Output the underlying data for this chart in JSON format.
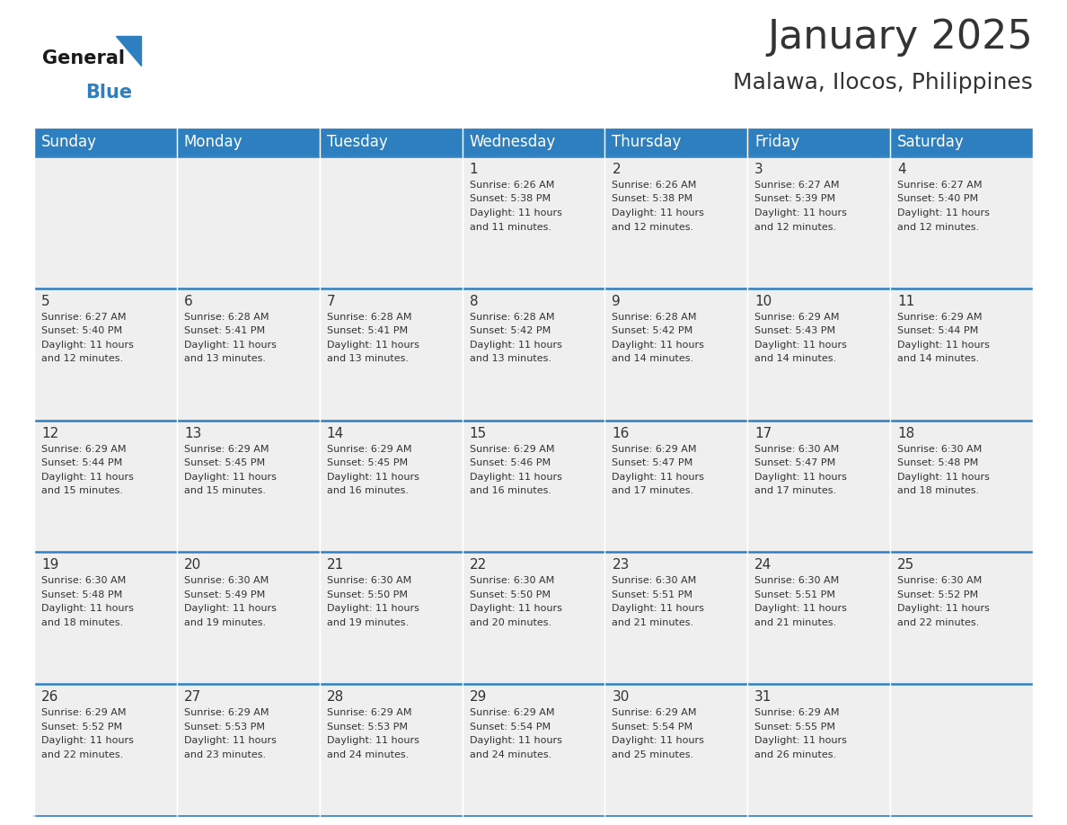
{
  "title": "January 2025",
  "subtitle": "Malawa, Ilocos, Philippines",
  "days_of_week": [
    "Sunday",
    "Monday",
    "Tuesday",
    "Wednesday",
    "Thursday",
    "Friday",
    "Saturday"
  ],
  "header_bg": "#2E7FBF",
  "header_text": "#FFFFFF",
  "row_bg_light": "#EFEFEF",
  "row_bg_white": "#FFFFFF",
  "cell_border": "#2E7FBF",
  "text_color": "#333333",
  "calendar_data": [
    [
      {
        "day": "",
        "sunrise": "",
        "sunset": "",
        "daylight": ""
      },
      {
        "day": "",
        "sunrise": "",
        "sunset": "",
        "daylight": ""
      },
      {
        "day": "",
        "sunrise": "",
        "sunset": "",
        "daylight": ""
      },
      {
        "day": "1",
        "sunrise": "6:26 AM",
        "sunset": "5:38 PM",
        "daylight": "11 hours\nand 11 minutes."
      },
      {
        "day": "2",
        "sunrise": "6:26 AM",
        "sunset": "5:38 PM",
        "daylight": "11 hours\nand 12 minutes."
      },
      {
        "day": "3",
        "sunrise": "6:27 AM",
        "sunset": "5:39 PM",
        "daylight": "11 hours\nand 12 minutes."
      },
      {
        "day": "4",
        "sunrise": "6:27 AM",
        "sunset": "5:40 PM",
        "daylight": "11 hours\nand 12 minutes."
      }
    ],
    [
      {
        "day": "5",
        "sunrise": "6:27 AM",
        "sunset": "5:40 PM",
        "daylight": "11 hours\nand 12 minutes."
      },
      {
        "day": "6",
        "sunrise": "6:28 AM",
        "sunset": "5:41 PM",
        "daylight": "11 hours\nand 13 minutes."
      },
      {
        "day": "7",
        "sunrise": "6:28 AM",
        "sunset": "5:41 PM",
        "daylight": "11 hours\nand 13 minutes."
      },
      {
        "day": "8",
        "sunrise": "6:28 AM",
        "sunset": "5:42 PM",
        "daylight": "11 hours\nand 13 minutes."
      },
      {
        "day": "9",
        "sunrise": "6:28 AM",
        "sunset": "5:42 PM",
        "daylight": "11 hours\nand 14 minutes."
      },
      {
        "day": "10",
        "sunrise": "6:29 AM",
        "sunset": "5:43 PM",
        "daylight": "11 hours\nand 14 minutes."
      },
      {
        "day": "11",
        "sunrise": "6:29 AM",
        "sunset": "5:44 PM",
        "daylight": "11 hours\nand 14 minutes."
      }
    ],
    [
      {
        "day": "12",
        "sunrise": "6:29 AM",
        "sunset": "5:44 PM",
        "daylight": "11 hours\nand 15 minutes."
      },
      {
        "day": "13",
        "sunrise": "6:29 AM",
        "sunset": "5:45 PM",
        "daylight": "11 hours\nand 15 minutes."
      },
      {
        "day": "14",
        "sunrise": "6:29 AM",
        "sunset": "5:45 PM",
        "daylight": "11 hours\nand 16 minutes."
      },
      {
        "day": "15",
        "sunrise": "6:29 AM",
        "sunset": "5:46 PM",
        "daylight": "11 hours\nand 16 minutes."
      },
      {
        "day": "16",
        "sunrise": "6:29 AM",
        "sunset": "5:47 PM",
        "daylight": "11 hours\nand 17 minutes."
      },
      {
        "day": "17",
        "sunrise": "6:30 AM",
        "sunset": "5:47 PM",
        "daylight": "11 hours\nand 17 minutes."
      },
      {
        "day": "18",
        "sunrise": "6:30 AM",
        "sunset": "5:48 PM",
        "daylight": "11 hours\nand 18 minutes."
      }
    ],
    [
      {
        "day": "19",
        "sunrise": "6:30 AM",
        "sunset": "5:48 PM",
        "daylight": "11 hours\nand 18 minutes."
      },
      {
        "day": "20",
        "sunrise": "6:30 AM",
        "sunset": "5:49 PM",
        "daylight": "11 hours\nand 19 minutes."
      },
      {
        "day": "21",
        "sunrise": "6:30 AM",
        "sunset": "5:50 PM",
        "daylight": "11 hours\nand 19 minutes."
      },
      {
        "day": "22",
        "sunrise": "6:30 AM",
        "sunset": "5:50 PM",
        "daylight": "11 hours\nand 20 minutes."
      },
      {
        "day": "23",
        "sunrise": "6:30 AM",
        "sunset": "5:51 PM",
        "daylight": "11 hours\nand 21 minutes."
      },
      {
        "day": "24",
        "sunrise": "6:30 AM",
        "sunset": "5:51 PM",
        "daylight": "11 hours\nand 21 minutes."
      },
      {
        "day": "25",
        "sunrise": "6:30 AM",
        "sunset": "5:52 PM",
        "daylight": "11 hours\nand 22 minutes."
      }
    ],
    [
      {
        "day": "26",
        "sunrise": "6:29 AM",
        "sunset": "5:52 PM",
        "daylight": "11 hours\nand 22 minutes."
      },
      {
        "day": "27",
        "sunrise": "6:29 AM",
        "sunset": "5:53 PM",
        "daylight": "11 hours\nand 23 minutes."
      },
      {
        "day": "28",
        "sunrise": "6:29 AM",
        "sunset": "5:53 PM",
        "daylight": "11 hours\nand 24 minutes."
      },
      {
        "day": "29",
        "sunrise": "6:29 AM",
        "sunset": "5:54 PM",
        "daylight": "11 hours\nand 24 minutes."
      },
      {
        "day": "30",
        "sunrise": "6:29 AM",
        "sunset": "5:54 PM",
        "daylight": "11 hours\nand 25 minutes."
      },
      {
        "day": "31",
        "sunrise": "6:29 AM",
        "sunset": "5:55 PM",
        "daylight": "11 hours\nand 26 minutes."
      },
      {
        "day": "",
        "sunrise": "",
        "sunset": "",
        "daylight": ""
      }
    ]
  ],
  "logo_general_color": "#1A1A1A",
  "logo_blue_color": "#2E7FBF",
  "title_fontsize": 32,
  "subtitle_fontsize": 18,
  "header_fontsize": 12,
  "day_num_fontsize": 11,
  "cell_text_fontsize": 8.0
}
